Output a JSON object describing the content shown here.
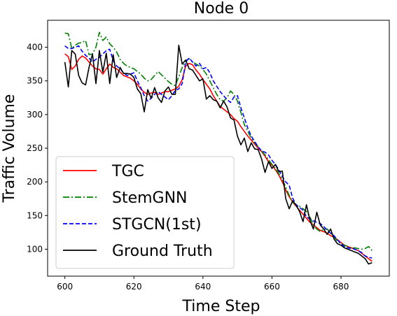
{
  "chart_data": {
    "type": "line",
    "title": "Node 0",
    "xlabel": "Time Step",
    "ylabel": "Traffic Volume",
    "xlim": [
      595,
      694
    ],
    "ylim": [
      60,
      440
    ],
    "xticks": [
      600,
      620,
      640,
      660,
      680
    ],
    "yticks": [
      100,
      150,
      200,
      250,
      300,
      350,
      400
    ],
    "legend_position": "lower-left",
    "x": [
      600,
      601,
      602,
      603,
      604,
      605,
      606,
      607,
      608,
      609,
      610,
      611,
      612,
      613,
      614,
      615,
      616,
      617,
      618,
      619,
      620,
      621,
      622,
      623,
      624,
      625,
      626,
      627,
      628,
      629,
      630,
      631,
      632,
      633,
      634,
      635,
      636,
      637,
      638,
      639,
      640,
      641,
      642,
      643,
      644,
      645,
      646,
      647,
      648,
      649,
      650,
      651,
      652,
      653,
      654,
      655,
      656,
      657,
      658,
      659,
      660,
      661,
      662,
      663,
      664,
      665,
      666,
      667,
      668,
      669,
      670,
      671,
      672,
      673,
      674,
      675,
      676,
      677,
      678,
      679,
      680,
      681,
      682,
      683,
      684,
      685,
      686,
      687,
      688,
      689
    ],
    "series": [
      {
        "name": "TGC",
        "color": "#ff0000",
        "style": "solid",
        "values": [
          390,
          386,
          367,
          372,
          382,
          387,
          384,
          378,
          372,
          368,
          367,
          360,
          368,
          375,
          370,
          368,
          363,
          358,
          356,
          354,
          350,
          345,
          338,
          333,
          330,
          332,
          333,
          330,
          332,
          334,
          334,
          336,
          338,
          342,
          352,
          372,
          376,
          374,
          366,
          360,
          352,
          345,
          338,
          328,
          320,
          312,
          308,
          304,
          300,
          294,
          290,
          282,
          275,
          268,
          262,
          256,
          250,
          245,
          238,
          230,
          225,
          218,
          210,
          200,
          188,
          178,
          170,
          164,
          158,
          152,
          146,
          140,
          136,
          132,
          128,
          126,
          124,
          120,
          118,
          114,
          110,
          106,
          104,
          102,
          100,
          98,
          94,
          90,
          86,
          82
        ]
      },
      {
        "name": "StemGNN",
        "color": "#008000",
        "style": "dashdot",
        "values": [
          421,
          420,
          398,
          403,
          406,
          407,
          410,
          389,
          390,
          400,
          422,
          410,
          415,
          405,
          400,
          393,
          382,
          376,
          372,
          370,
          368,
          364,
          360,
          354,
          350,
          352,
          358,
          364,
          359,
          354,
          349,
          345,
          343,
          356,
          370,
          380,
          383,
          378,
          375,
          372,
          367,
          360,
          350,
          340,
          330,
          322,
          320,
          325,
          335,
          330,
          320,
          303,
          285,
          275,
          265,
          258,
          252,
          246,
          240,
          233,
          226,
          220,
          212,
          204,
          192,
          180,
          170,
          166,
          164,
          160,
          156,
          148,
          136,
          130,
          126,
          130,
          130,
          124,
          118,
          112,
          108,
          106,
          104,
          102,
          102,
          101,
          100,
          101,
          104,
          98
        ]
      },
      {
        "name": "STGCN(1st)",
        "color": "#0000ff",
        "style": "dashed",
        "values": [
          402,
          398,
          398,
          400,
          402,
          394,
          388,
          384,
          378,
          382,
          385,
          390,
          395,
          397,
          380,
          372,
          368,
          362,
          358,
          360,
          362,
          350,
          340,
          328,
          320,
          324,
          330,
          334,
          330,
          326,
          322,
          328,
          336,
          338,
          346,
          378,
          384,
          378,
          372,
          376,
          368,
          370,
          362,
          350,
          342,
          334,
          328,
          322,
          318,
          326,
          328,
          310,
          295,
          280,
          268,
          260,
          252,
          246,
          244,
          240,
          232,
          226,
          218,
          208,
          200,
          195,
          176,
          166,
          162,
          158,
          148,
          145,
          142,
          140,
          138,
          134,
          128,
          124,
          120,
          114,
          108,
          104,
          102,
          101,
          100,
          98,
          95,
          90,
          88,
          87
        ]
      },
      {
        "name": "Ground Truth",
        "color": "#000000",
        "style": "solid",
        "values": [
          378,
          341,
          395,
          390,
          358,
          347,
          344,
          370,
          390,
          346,
          395,
          363,
          391,
          346,
          389,
          355,
          370,
          361,
          361,
          360,
          355,
          338,
          331,
          304,
          337,
          324,
          340,
          325,
          318,
          335,
          341,
          330,
          330,
          403,
          375,
          381,
          368,
          366,
          358,
          350,
          353,
          323,
          328,
          322,
          320,
          310,
          320,
          311,
          295,
          292,
          268,
          255,
          265,
          245,
          258,
          249,
          248,
          234,
          214,
          230,
          220,
          226,
          215,
          216,
          175,
          160,
          172,
          165,
          156,
          141,
          166,
          143,
          130,
          155,
          136,
          130,
          122,
          130,
          115,
          108,
          106,
          102,
          100,
          98,
          96,
          94,
          90,
          86,
          78,
          80
        ]
      }
    ]
  }
}
